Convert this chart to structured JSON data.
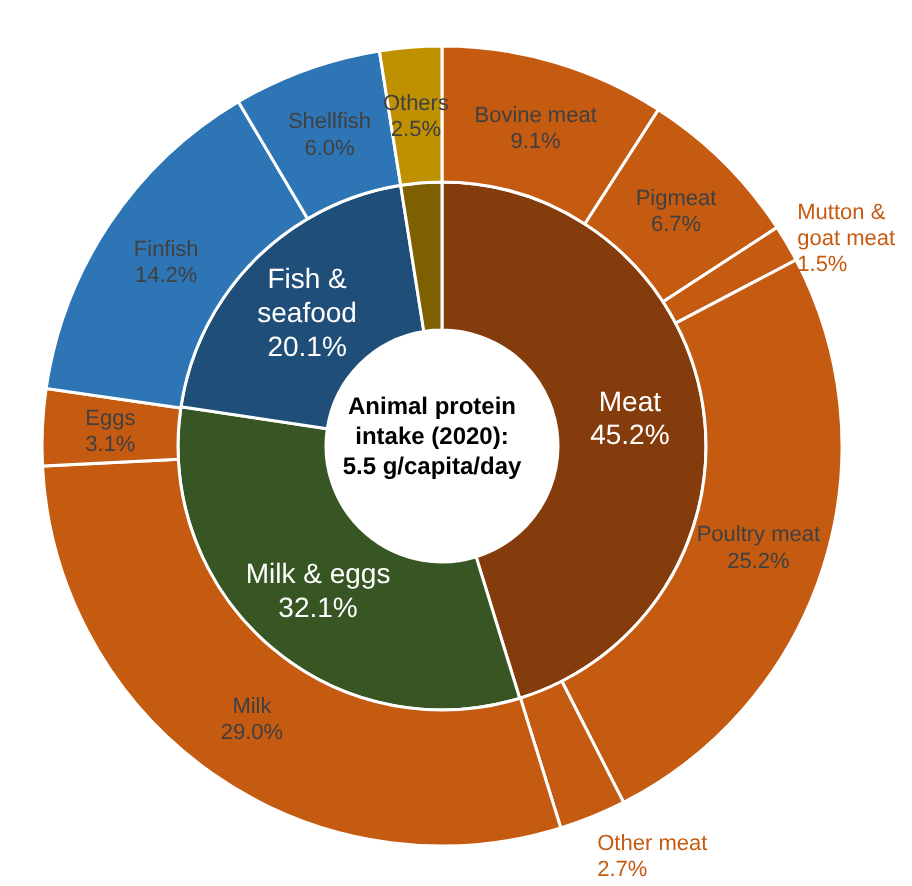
{
  "chart_data": [
    {
      "type": "donut",
      "title": "Animal protein intake (2020): 5.5 g/capita/day",
      "categories": [
        "Meat",
        "Milk & eggs",
        "Fish & seafood",
        null
      ],
      "values": [
        45.2,
        32.1,
        20.1,
        2.5
      ],
      "value_labels": [
        "45.2%",
        "32.1%",
        "20.1%",
        null
      ],
      "colors": [
        "#843c0c",
        "#375623",
        "#1f4e79",
        "#7f6000"
      ]
    },
    {
      "type": "donut",
      "categories": [
        "Bovine meat",
        "Pigmeat",
        "Mutton & goat meat",
        "Poultry meat",
        "Other meat",
        "Milk",
        "Eggs",
        "Finfish",
        "Shellfish",
        "Others"
      ],
      "values": [
        9.1,
        6.7,
        1.5,
        25.2,
        2.7,
        29.0,
        3.1,
        14.2,
        6.0,
        2.5
      ],
      "value_labels": [
        "9.1%",
        "6.7%",
        "1.5%",
        "25.2%",
        "2.7%",
        "29.0%",
        "3.1%",
        "14.2%",
        "6.0%",
        "2.5%"
      ],
      "colors": [
        "#c55a11",
        "#c55a11",
        "#c55a11",
        "#c55a11",
        "#c55a11",
        "#c55a11",
        "#c55a11",
        "#2e75b6",
        "#2e75b6",
        "#bf9000"
      ]
    }
  ]
}
